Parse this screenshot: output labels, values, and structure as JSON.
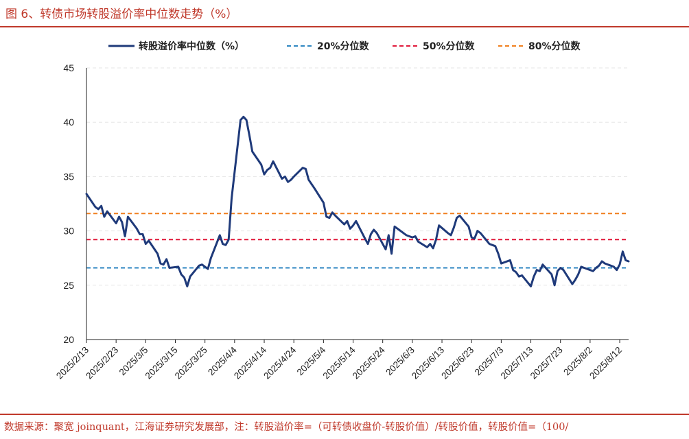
{
  "figure": {
    "title": "图 6、转债市场转股溢价率中位数走势（%）",
    "source": "数据来源：聚宽 joinquant，江海证券研究发展部，注：转股溢价率=（可转债收盘价-转股价值）/转股价值，转股价值=（100/"
  },
  "colors": {
    "main_line": "#1f3a7a",
    "p20": "#2e86c1",
    "p50": "#e0193a",
    "p80": "#f07f1e",
    "grid": "#e6e6e6",
    "accent": "#c0392b"
  },
  "chart_data": {
    "type": "line",
    "ylim": [
      20,
      45
    ],
    "yticks": [
      20,
      25,
      30,
      35,
      40,
      45
    ],
    "grid": "horizontal dashed",
    "legend": "top",
    "x_tick_labels": [
      "2025/2/13",
      "2025/2/23",
      "2025/3/5",
      "2025/3/15",
      "2025/3/25",
      "2025/4/4",
      "2025/4/14",
      "2025/4/24",
      "2025/5/4",
      "2025/5/14",
      "2025/5/24",
      "2025/6/3",
      "2025/6/13",
      "2025/6/23",
      "2025/7/3",
      "2025/7/13",
      "2025/7/23",
      "2025/8/2",
      "2025/8/12"
    ],
    "x_tick_days": [
      0,
      10,
      20,
      30,
      40,
      50,
      60,
      70,
      80,
      90,
      100,
      110,
      120,
      130,
      140,
      150,
      160,
      170,
      180
    ],
    "x_range_days": [
      0,
      183
    ],
    "series": [
      {
        "name": "转股溢价率中位数（%）",
        "x": [
          0,
          3,
          4,
          5,
          6,
          7,
          10,
          11,
          12,
          13,
          14,
          17,
          18,
          19,
          20,
          21,
          24,
          25,
          26,
          27,
          28,
          31,
          32,
          33,
          34,
          35,
          38,
          39,
          40,
          41,
          42,
          45,
          46,
          47,
          48,
          49,
          52,
          53,
          54,
          55,
          56,
          59,
          60,
          61,
          62,
          63,
          66,
          67,
          68,
          69,
          70,
          73,
          74,
          75,
          76,
          77,
          80,
          81,
          82,
          83,
          84,
          87,
          88,
          89,
          90,
          91,
          94,
          95,
          96,
          97,
          98,
          101,
          102,
          103,
          104,
          105,
          108,
          109,
          110,
          111,
          112,
          115,
          116,
          117,
          118,
          119,
          122,
          123,
          124,
          125,
          126,
          129,
          130,
          131,
          132,
          133,
          136,
          137,
          138,
          139,
          140,
          143,
          144,
          145,
          146,
          147,
          150,
          151,
          152,
          153,
          154,
          157,
          158,
          159,
          160,
          161,
          164,
          165,
          166,
          167,
          168,
          171,
          172,
          173,
          174,
          175,
          178,
          179,
          180,
          181,
          182,
          183
        ],
        "values": [
          33.4,
          32.2,
          32.0,
          32.3,
          31.3,
          31.8,
          30.7,
          31.3,
          30.8,
          29.5,
          31.3,
          30.2,
          29.7,
          29.7,
          28.8,
          29.1,
          27.9,
          27.0,
          26.9,
          27.4,
          26.6,
          26.7,
          26.0,
          25.7,
          24.9,
          25.8,
          26.8,
          26.9,
          26.7,
          26.5,
          27.5,
          29.6,
          28.8,
          28.7,
          29.2,
          33.0,
          40.2,
          40.5,
          40.2,
          38.8,
          37.3,
          36.1,
          35.2,
          35.6,
          35.8,
          36.4,
          34.8,
          35.0,
          34.5,
          34.7,
          35.0,
          35.8,
          35.7,
          34.7,
          34.3,
          33.9,
          32.6,
          31.3,
          31.2,
          31.7,
          31.4,
          30.6,
          30.9,
          30.2,
          30.5,
          30.9,
          29.3,
          28.8,
          29.7,
          30.1,
          29.8,
          28.3,
          29.6,
          27.9,
          30.4,
          30.2,
          29.6,
          29.5,
          29.4,
          29.5,
          29.0,
          28.5,
          28.8,
          28.4,
          29.2,
          30.5,
          29.8,
          29.6,
          30.3,
          31.2,
          31.4,
          30.4,
          29.4,
          29.3,
          30.0,
          29.8,
          28.8,
          28.7,
          28.6,
          27.9,
          27.0,
          27.3,
          26.4,
          26.2,
          25.8,
          25.9,
          24.9,
          25.8,
          26.4,
          26.3,
          26.9,
          26.0,
          25.0,
          26.3,
          26.6,
          26.4,
          25.1,
          25.5,
          26.0,
          26.7,
          26.6,
          26.3,
          26.6,
          26.8,
          27.2,
          27.0,
          26.7,
          26.4,
          26.9,
          28.1,
          27.3,
          27.2
        ]
      },
      {
        "name": "20%分位数",
        "value": 26.6,
        "style": "dashed"
      },
      {
        "name": "50%分位数",
        "value": 29.2,
        "style": "dashed"
      },
      {
        "name": "80%分位数",
        "value": 31.6,
        "style": "dashed"
      }
    ]
  }
}
